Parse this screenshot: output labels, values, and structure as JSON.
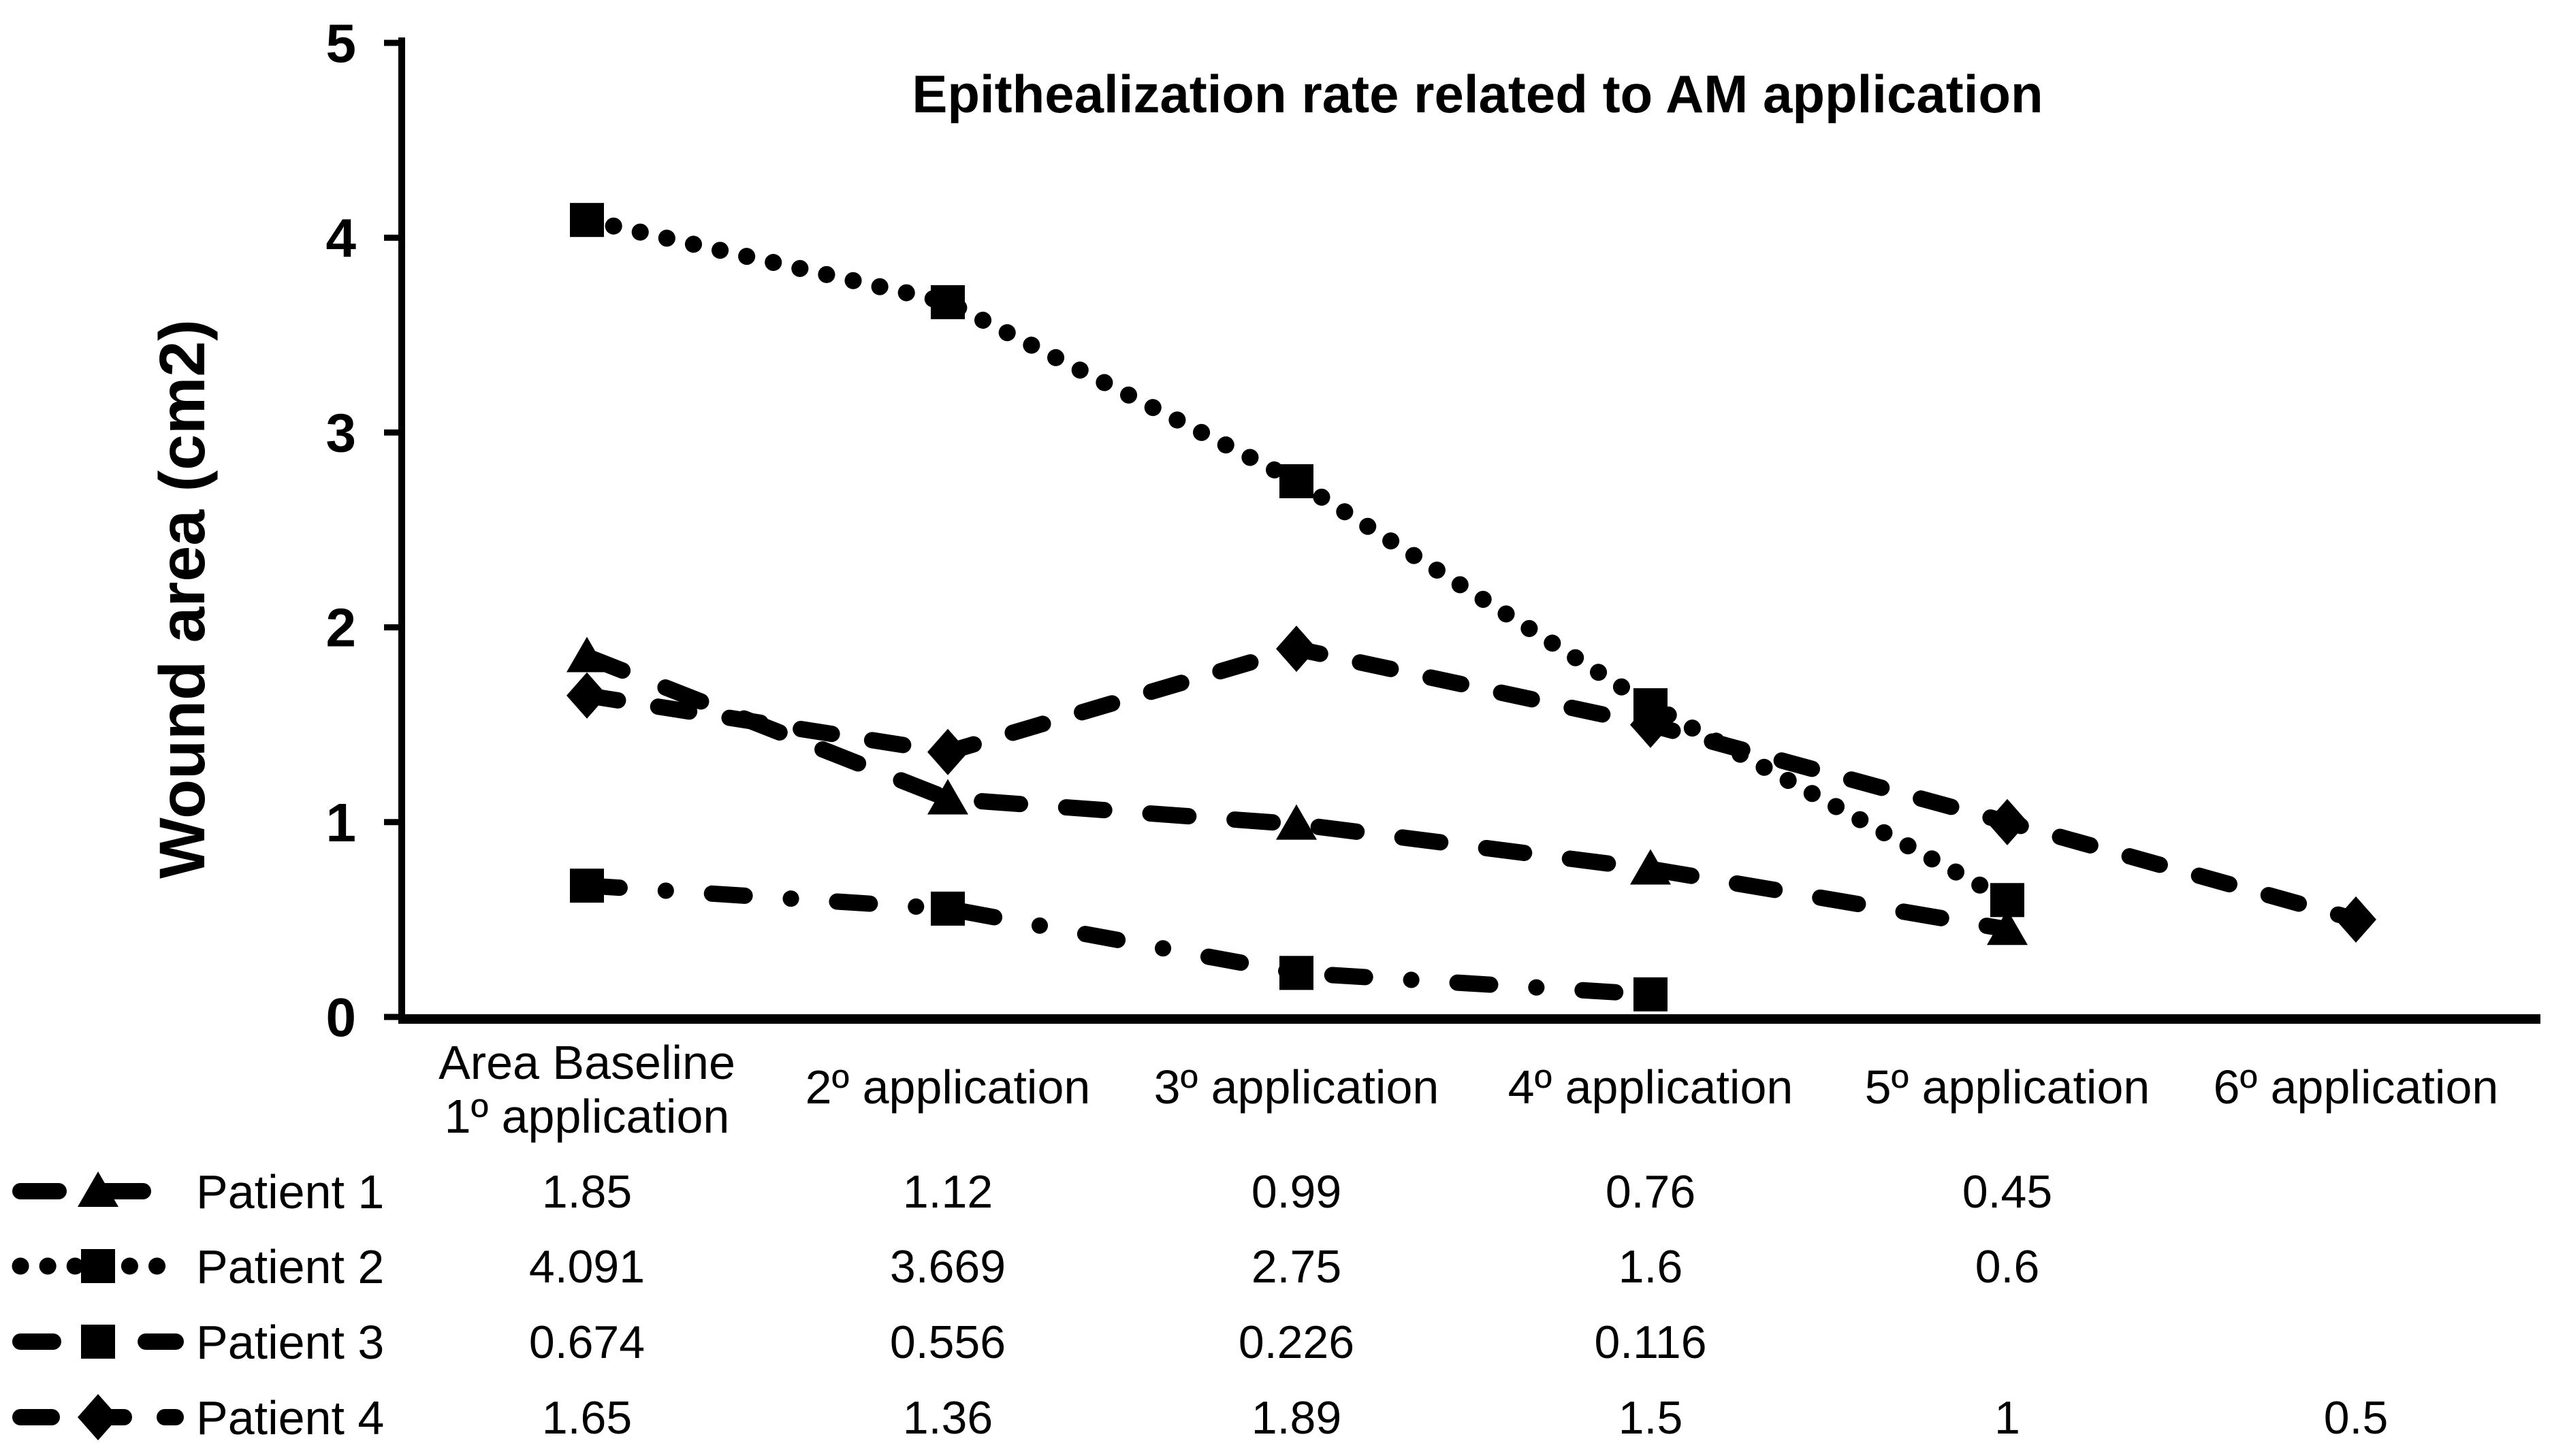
{
  "chart_data": {
    "type": "line",
    "title": "Epithealization rate related to AM application",
    "xlabel": "",
    "ylabel": "Wound area (cm2)",
    "ylim": [
      0,
      5
    ],
    "yticks": [
      "0",
      "1",
      "2",
      "3",
      "4",
      "5"
    ],
    "grid": false,
    "legend_position": "bottom-left table",
    "categories": [
      "Area Baseline 1º application",
      "2º application",
      "3º application",
      "4º application",
      "5º application",
      "6º application"
    ],
    "category_label_lines": [
      [
        "Area Baseline",
        "1º application"
      ],
      [
        "2º application"
      ],
      [
        "3º application"
      ],
      [
        "4º application"
      ],
      [
        "5º application"
      ],
      [
        "6º application"
      ]
    ],
    "series": [
      {
        "name": "Patient 1",
        "marker": "triangle",
        "line_style": "long-dash",
        "values": [
          1.85,
          1.12,
          0.99,
          0.76,
          0.45,
          null
        ]
      },
      {
        "name": "Patient 2",
        "marker": "square",
        "line_style": "dotted",
        "values": [
          4.091,
          3.669,
          2.75,
          1.6,
          0.6,
          null
        ]
      },
      {
        "name": "Patient 3",
        "marker": "square",
        "line_style": "dash-dot",
        "values": [
          0.674,
          0.556,
          0.226,
          0.116,
          null,
          null
        ]
      },
      {
        "name": "Patient 4",
        "marker": "diamond",
        "line_style": "dash",
        "values": [
          1.65,
          1.36,
          1.89,
          1.5,
          1,
          0.5
        ]
      }
    ]
  },
  "table": {
    "rows": [
      {
        "label": "Patient 1",
        "values": [
          "1.85",
          "1.12",
          "0.99",
          "0.76",
          "0.45",
          ""
        ]
      },
      {
        "label": "Patient 2",
        "values": [
          "4.091",
          "3.669",
          "2.75",
          "1.6",
          "0.6",
          ""
        ]
      },
      {
        "label": "Patient 3",
        "values": [
          "0.674",
          "0.556",
          "0.226",
          "0.116",
          "",
          ""
        ]
      },
      {
        "label": "Patient 4",
        "values": [
          "1.65",
          "1.36",
          "1.89",
          "1.5",
          "1",
          "0.5"
        ]
      }
    ]
  },
  "colors": {
    "foreground": "#000000",
    "background": "#ffffff"
  }
}
